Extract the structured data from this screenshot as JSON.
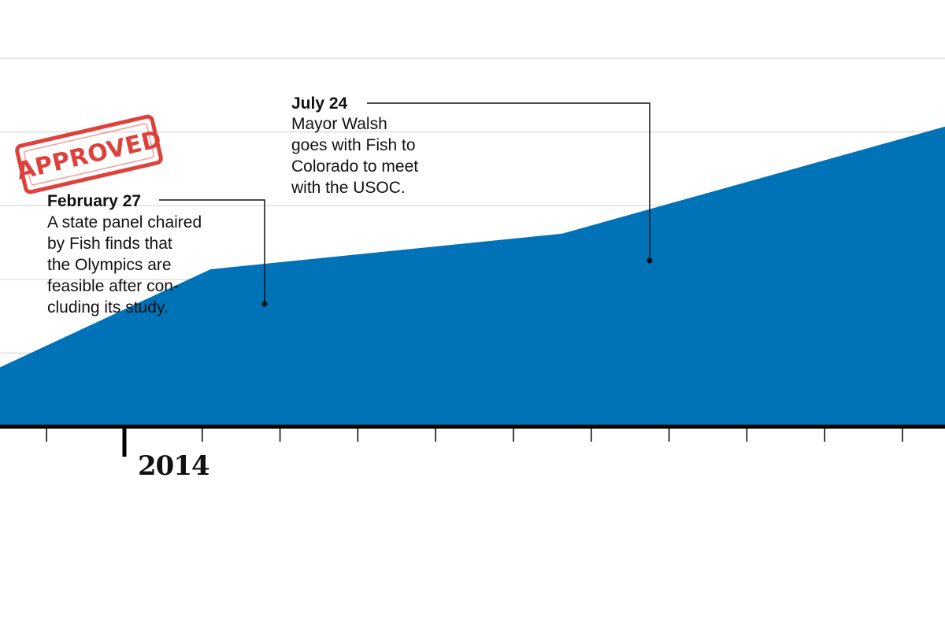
{
  "chart_data": {
    "type": "area",
    "x": [
      "2013-12-01",
      "2014-02-27",
      "2014-07-24",
      "2014-12-31"
    ],
    "values": [
      1.0,
      2.65,
      3.25,
      5.05
    ],
    "ylim": [
      0,
      6.2
    ],
    "xlim": [
      "2013-12-01",
      "2014-12-31"
    ],
    "series_color": "#0072b8",
    "grid": true,
    "year_label": "2014",
    "annotations": [
      {
        "date": "February 27",
        "x": "2014-02-27",
        "y": 2.65,
        "lines": [
          "A state panel chaired",
          "by Fish finds that",
          "the Olympics are",
          "feasible after con-",
          "cluding its study."
        ]
      },
      {
        "date": "July 24",
        "x": "2014-07-24",
        "y": 3.25,
        "lines": [
          "Mayor Walsh",
          "goes with Fish to",
          "Colorado to meet",
          "with the USOC."
        ]
      }
    ],
    "stamp": "APPROVED"
  }
}
